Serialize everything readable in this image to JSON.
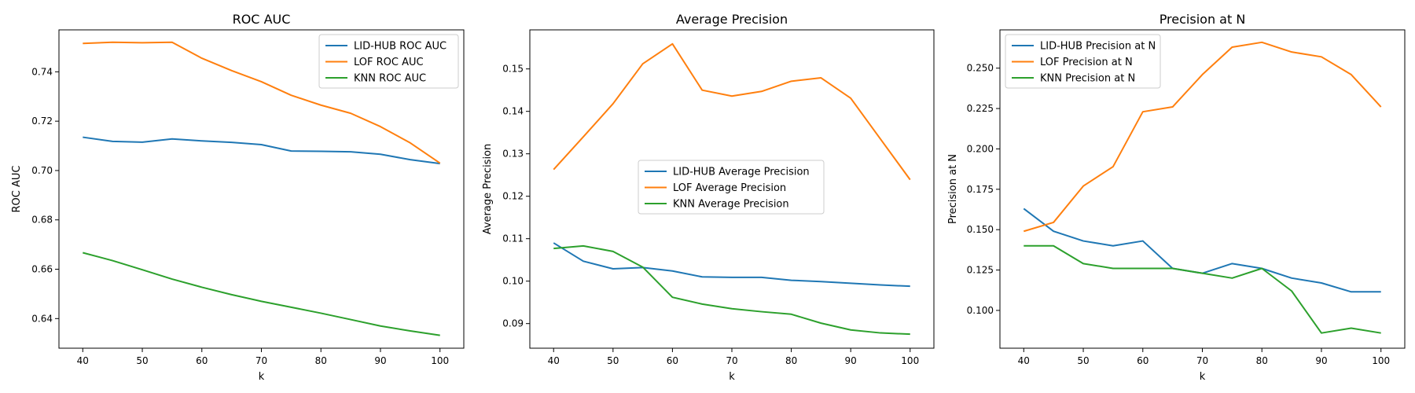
{
  "chart_data": [
    {
      "type": "line",
      "title": "ROC AUC",
      "xlabel": "k",
      "ylabel": "ROC AUC",
      "xlim": [
        36,
        104
      ],
      "ylim": [
        0.628,
        0.757
      ],
      "xticks": [
        40,
        50,
        60,
        70,
        80,
        90,
        100
      ],
      "yticks": [
        0.64,
        0.66,
        0.68,
        0.7,
        0.72,
        0.74
      ],
      "ytick_labels": [
        "0.64",
        "0.66",
        "0.68",
        "0.70",
        "0.72",
        "0.74"
      ],
      "legend_position": "top-right",
      "grid": false,
      "x": [
        40,
        45,
        50,
        55,
        60,
        65,
        70,
        75,
        80,
        85,
        90,
        95,
        100
      ],
      "series": [
        {
          "name": "LID-HUB ROC AUC",
          "color": "#1f77b4",
          "values": [
            0.7135,
            0.7118,
            0.7115,
            0.7128,
            0.712,
            0.7114,
            0.7105,
            0.7079,
            0.7078,
            0.7076,
            0.7066,
            0.7044,
            0.7028
          ]
        },
        {
          "name": "LOF ROC AUC",
          "color": "#ff7f0e",
          "values": [
            0.7515,
            0.752,
            0.7518,
            0.752,
            0.7455,
            0.7405,
            0.736,
            0.7305,
            0.7265,
            0.7232,
            0.7178,
            0.7112,
            0.703
          ]
        },
        {
          "name": "KNN ROC AUC",
          "color": "#2ca02c",
          "values": [
            0.6667,
            0.6635,
            0.6598,
            0.656,
            0.6527,
            0.6497,
            0.647,
            0.6446,
            0.6422,
            0.6396,
            0.637,
            0.635,
            0.6332
          ]
        }
      ]
    },
    {
      "type": "line",
      "title": "Average Precision",
      "xlabel": "k",
      "ylabel": "Average Precision",
      "xlim": [
        36,
        104
      ],
      "ylim": [
        0.0842,
        0.1592
      ],
      "xticks": [
        40,
        50,
        60,
        70,
        80,
        90,
        100
      ],
      "yticks": [
        0.09,
        0.1,
        0.11,
        0.12,
        0.13,
        0.14,
        0.15
      ],
      "ytick_labels": [
        "0.09",
        "0.10",
        "0.11",
        "0.12",
        "0.13",
        "0.14",
        "0.15"
      ],
      "legend_position": "center",
      "grid": false,
      "x": [
        40,
        45,
        50,
        55,
        60,
        65,
        70,
        75,
        80,
        85,
        90,
        95,
        100
      ],
      "series": [
        {
          "name": "LID-HUB Average Precision",
          "color": "#1f77b4",
          "values": [
            0.109,
            0.1047,
            0.1029,
            0.1032,
            0.1024,
            0.101,
            0.1009,
            0.1009,
            0.1002,
            0.0999,
            0.0995,
            0.0991,
            0.0988
          ]
        },
        {
          "name": "LOF Average Precision",
          "color": "#ff7f0e",
          "values": [
            0.1263,
            0.134,
            0.1418,
            0.1512,
            0.1559,
            0.145,
            0.1436,
            0.1447,
            0.1471,
            0.1479,
            0.1431,
            0.1335,
            0.1239
          ]
        },
        {
          "name": "KNN Average Precision",
          "color": "#2ca02c",
          "values": [
            0.1077,
            0.1083,
            0.107,
            0.1033,
            0.0962,
            0.0946,
            0.0935,
            0.0928,
            0.0922,
            0.0901,
            0.0885,
            0.0878,
            0.0875
          ]
        }
      ]
    },
    {
      "type": "line",
      "title": "Precision at N",
      "xlabel": "k",
      "ylabel": "Precision at N",
      "xlim": [
        36,
        104
      ],
      "ylim": [
        0.0766,
        0.2737
      ],
      "xticks": [
        40,
        50,
        60,
        70,
        80,
        90,
        100
      ],
      "yticks": [
        0.1,
        0.125,
        0.15,
        0.175,
        0.2,
        0.225,
        0.25
      ],
      "ytick_labels": [
        "0.100",
        "0.125",
        "0.150",
        "0.175",
        "0.200",
        "0.225",
        "0.250"
      ],
      "legend_position": "top-left",
      "grid": false,
      "x": [
        40,
        45,
        50,
        55,
        60,
        65,
        70,
        75,
        80,
        85,
        90,
        95,
        100
      ],
      "series": [
        {
          "name": "LID-HUB Precision at N",
          "color": "#1f77b4",
          "values": [
            0.163,
            0.149,
            0.143,
            0.14,
            0.143,
            0.126,
            0.123,
            0.129,
            0.126,
            0.12,
            0.117,
            0.1115,
            0.1115
          ]
        },
        {
          "name": "LOF Precision at N",
          "color": "#ff7f0e",
          "values": [
            0.149,
            0.1545,
            0.177,
            0.189,
            0.223,
            0.226,
            0.246,
            0.263,
            0.266,
            0.26,
            0.257,
            0.246,
            0.226
          ]
        },
        {
          "name": "KNN Precision at N",
          "color": "#2ca02c",
          "values": [
            0.14,
            0.14,
            0.129,
            0.126,
            0.126,
            0.126,
            0.123,
            0.12,
            0.126,
            0.112,
            0.086,
            0.089,
            0.086
          ]
        }
      ]
    }
  ]
}
